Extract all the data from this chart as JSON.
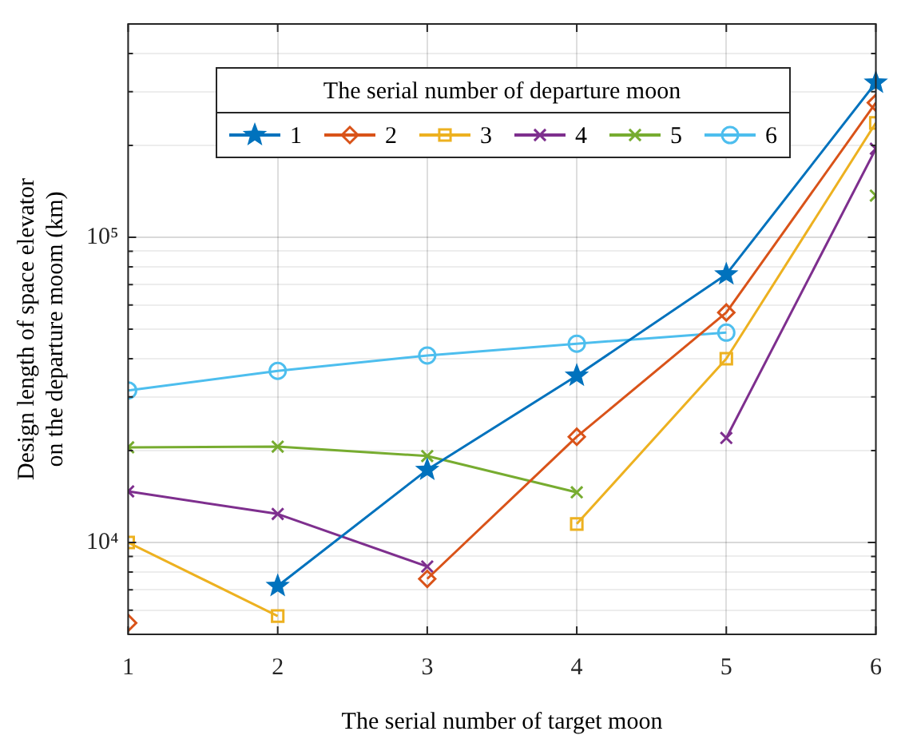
{
  "chart_data": {
    "type": "line",
    "xlabel": "The serial number of target moon",
    "ylabel": "Design length of space elevator on the departure moom (km)",
    "legend_title": "The serial number of departure moon",
    "legend": "top",
    "grid": true,
    "log": "y",
    "x": [
      1,
      2,
      3,
      4,
      5,
      6
    ],
    "xlim": [
      1,
      6
    ],
    "xticks": [
      1,
      2,
      3,
      4,
      5,
      6
    ],
    "ylim": [
      5000,
      500000
    ],
    "yticks": [
      {
        "value": 5000,
        "label": null
      },
      {
        "value": 6000,
        "label": null
      },
      {
        "value": 7000,
        "label": null
      },
      {
        "value": 8000,
        "label": null
      },
      {
        "value": 9000,
        "label": null
      },
      {
        "value": 10000,
        "label": "10⁴"
      },
      {
        "value": 20000,
        "label": null
      },
      {
        "value": 30000,
        "label": null
      },
      {
        "value": 40000,
        "label": null
      },
      {
        "value": 50000,
        "label": null
      },
      {
        "value": 60000,
        "label": null
      },
      {
        "value": 70000,
        "label": null
      },
      {
        "value": 80000,
        "label": null
      },
      {
        "value": 90000,
        "label": null
      },
      {
        "value": 100000,
        "label": "10⁵"
      },
      {
        "value": 200000,
        "label": null
      },
      {
        "value": 300000,
        "label": null
      },
      {
        "value": 400000,
        "label": null
      },
      {
        "value": 500000,
        "label": null
      }
    ],
    "series": [
      {
        "name": "1",
        "color": "#0072bd",
        "marker": "star",
        "values": [
          null,
          7200,
          17300,
          35200,
          75600,
          321000
        ]
      },
      {
        "name": "2",
        "color": "#d95319",
        "marker": "diamond",
        "values": [
          5450,
          null,
          7600,
          22200,
          56700,
          276000
        ]
      },
      {
        "name": "3",
        "color": "#edb120",
        "marker": "square",
        "values": [
          10000,
          5740,
          null,
          11500,
          40000,
          237000
        ]
      },
      {
        "name": "4",
        "color": "#7e2f8e",
        "marker": "cross",
        "values": [
          14700,
          12400,
          8340,
          null,
          22000,
          195000
        ]
      },
      {
        "name": "5",
        "color": "#77ac30",
        "marker": "cross",
        "values": [
          20500,
          20600,
          19200,
          14600,
          null,
          137000
        ]
      },
      {
        "name": "6",
        "color": "#4dbeee",
        "marker": "circle",
        "values": [
          31500,
          36500,
          41000,
          44800,
          48700,
          null
        ]
      }
    ]
  }
}
